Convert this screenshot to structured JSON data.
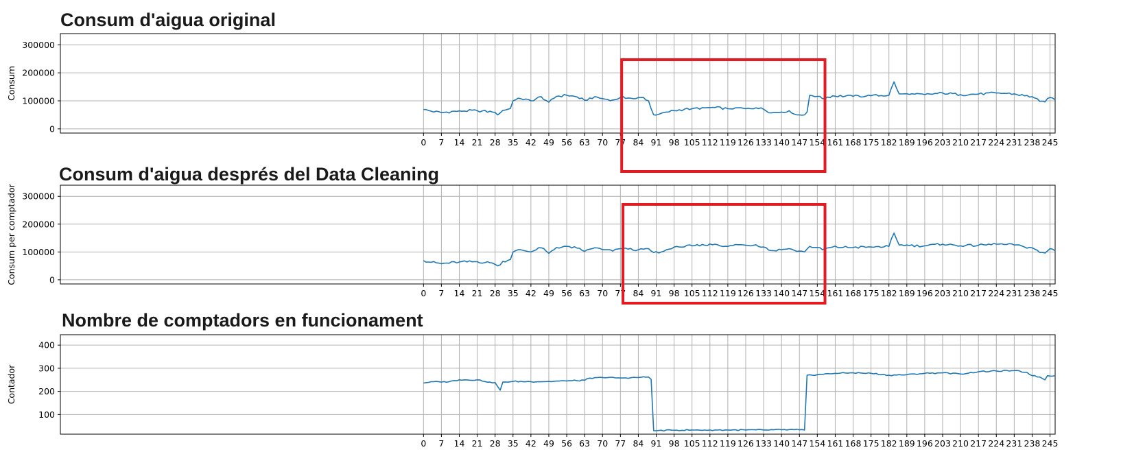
{
  "colors": {
    "line": "#1f77b4",
    "grid": "#b0b0b0",
    "highlight": "#e31b23",
    "axis": "#000000"
  },
  "chart_data": [
    {
      "type": "line",
      "title": "Consum d'aigua original",
      "ylabel": "Consum",
      "xlim": [
        -142,
        247
      ],
      "ylim": [
        -15000,
        340000
      ],
      "yticks": [
        0,
        100000,
        200000,
        300000
      ],
      "xticks": [
        0,
        7,
        14,
        21,
        28,
        35,
        42,
        49,
        56,
        63,
        70,
        77,
        84,
        91,
        98,
        105,
        112,
        119,
        126,
        133,
        140,
        147,
        154,
        161,
        168,
        175,
        182,
        189,
        196,
        203,
        210,
        217,
        224,
        231,
        238,
        245
      ],
      "grid": true,
      "highlight_box": {
        "x_range": [
          77.5,
          157
        ],
        "note": ""
      },
      "anchors": [
        [
          0,
          69000
        ],
        [
          3,
          63000
        ],
        [
          7,
          58000
        ],
        [
          14,
          64000
        ],
        [
          21,
          65000
        ],
        [
          27,
          60000
        ],
        [
          29,
          50000
        ],
        [
          31,
          66000
        ],
        [
          34,
          73000
        ],
        [
          35,
          100000
        ],
        [
          38,
          108000
        ],
        [
          42,
          100000
        ],
        [
          46,
          115000
        ],
        [
          49,
          95000
        ],
        [
          52,
          116000
        ],
        [
          56,
          120000
        ],
        [
          60,
          114000
        ],
        [
          63,
          102000
        ],
        [
          67,
          115000
        ],
        [
          70,
          108000
        ],
        [
          74,
          103000
        ],
        [
          77,
          112000
        ],
        [
          80,
          110000
        ],
        [
          83,
          108000
        ],
        [
          86,
          112000
        ],
        [
          88,
          100000
        ],
        [
          89,
          72000
        ],
        [
          90,
          50000
        ],
        [
          92,
          52000
        ],
        [
          95,
          60000
        ],
        [
          98,
          65000
        ],
        [
          102,
          70000
        ],
        [
          105,
          72000
        ],
        [
          110,
          75000
        ],
        [
          114,
          76000
        ],
        [
          119,
          72000
        ],
        [
          122,
          75000
        ],
        [
          126,
          72000
        ],
        [
          130,
          75000
        ],
        [
          133,
          70000
        ],
        [
          136,
          57000
        ],
        [
          140,
          60000
        ],
        [
          143,
          65000
        ],
        [
          146,
          50000
        ],
        [
          149,
          50000
        ],
        [
          150,
          60000
        ],
        [
          151,
          120000
        ],
        [
          154,
          116000
        ],
        [
          156,
          108000
        ],
        [
          160,
          118000
        ],
        [
          168,
          116000
        ],
        [
          175,
          118000
        ],
        [
          182,
          120000
        ],
        [
          184,
          168000
        ],
        [
          186,
          125000
        ],
        [
          190,
          123000
        ],
        [
          196,
          122000
        ],
        [
          203,
          128000
        ],
        [
          210,
          122000
        ],
        [
          217,
          124000
        ],
        [
          224,
          128000
        ],
        [
          231,
          125000
        ],
        [
          235,
          118000
        ],
        [
          238,
          115000
        ],
        [
          241,
          98000
        ],
        [
          243,
          96000
        ],
        [
          245,
          112000
        ],
        [
          246,
          110000
        ],
        [
          247,
          104000
        ]
      ]
    },
    {
      "type": "line",
      "title": "Consum d'aigua després del Data Cleaning",
      "ylabel": "Consum per comptador",
      "xlim": [
        -142,
        247
      ],
      "ylim": [
        -15000,
        340000
      ],
      "yticks": [
        0,
        100000,
        200000,
        300000
      ],
      "xticks": [
        0,
        7,
        14,
        21,
        28,
        35,
        42,
        49,
        56,
        63,
        70,
        77,
        84,
        91,
        98,
        105,
        112,
        119,
        126,
        133,
        140,
        147,
        154,
        161,
        168,
        175,
        182,
        189,
        196,
        203,
        210,
        217,
        224,
        231,
        238,
        245
      ],
      "grid": true,
      "highlight_box": {
        "x_range": [
          78,
          157
        ],
        "note": ""
      },
      "anchors": [
        [
          0,
          69000
        ],
        [
          3,
          63000
        ],
        [
          7,
          58000
        ],
        [
          14,
          64000
        ],
        [
          21,
          65000
        ],
        [
          27,
          60000
        ],
        [
          29,
          50000
        ],
        [
          31,
          66000
        ],
        [
          34,
          73000
        ],
        [
          35,
          100000
        ],
        [
          38,
          108000
        ],
        [
          42,
          100000
        ],
        [
          46,
          115000
        ],
        [
          49,
          95000
        ],
        [
          52,
          116000
        ],
        [
          56,
          120000
        ],
        [
          60,
          114000
        ],
        [
          63,
          102000
        ],
        [
          67,
          115000
        ],
        [
          70,
          108000
        ],
        [
          74,
          103000
        ],
        [
          77,
          112000
        ],
        [
          80,
          110000
        ],
        [
          84,
          108000
        ],
        [
          88,
          112000
        ],
        [
          90,
          98000
        ],
        [
          93,
          100000
        ],
        [
          96,
          110000
        ],
        [
          100,
          118000
        ],
        [
          105,
          122000
        ],
        [
          110,
          124000
        ],
        [
          114,
          128000
        ],
        [
          119,
          120000
        ],
        [
          123,
          126000
        ],
        [
          126,
          124000
        ],
        [
          130,
          126000
        ],
        [
          133,
          118000
        ],
        [
          136,
          105000
        ],
        [
          140,
          108000
        ],
        [
          143,
          112000
        ],
        [
          146,
          102000
        ],
        [
          149,
          100000
        ],
        [
          151,
          120000
        ],
        [
          154,
          116000
        ],
        [
          156,
          108000
        ],
        [
          160,
          118000
        ],
        [
          168,
          116000
        ],
        [
          175,
          118000
        ],
        [
          182,
          120000
        ],
        [
          184,
          168000
        ],
        [
          186,
          125000
        ],
        [
          190,
          123000
        ],
        [
          196,
          122000
        ],
        [
          203,
          128000
        ],
        [
          210,
          122000
        ],
        [
          217,
          124000
        ],
        [
          224,
          128000
        ],
        [
          231,
          125000
        ],
        [
          235,
          118000
        ],
        [
          238,
          115000
        ],
        [
          241,
          98000
        ],
        [
          243,
          96000
        ],
        [
          245,
          112000
        ],
        [
          246,
          110000
        ],
        [
          247,
          104000
        ]
      ]
    },
    {
      "type": "line",
      "title": "Nombre de comptadors en funcionament",
      "ylabel": "Contador",
      "xlim": [
        -142,
        247
      ],
      "ylim": [
        15,
        445
      ],
      "yticks": [
        100,
        200,
        300,
        400
      ],
      "xticks": [
        0,
        7,
        14,
        21,
        28,
        35,
        42,
        49,
        56,
        63,
        70,
        77,
        84,
        91,
        98,
        105,
        112,
        119,
        126,
        133,
        140,
        147,
        154,
        161,
        168,
        175,
        182,
        189,
        196,
        203,
        210,
        217,
        224,
        231,
        238,
        245
      ],
      "grid": true,
      "anchors": [
        [
          0,
          236
        ],
        [
          3,
          242
        ],
        [
          7,
          240
        ],
        [
          10,
          242
        ],
        [
          14,
          250
        ],
        [
          21,
          250
        ],
        [
          26,
          240
        ],
        [
          28,
          238
        ],
        [
          30,
          205
        ],
        [
          31,
          240
        ],
        [
          35,
          243
        ],
        [
          42,
          242
        ],
        [
          49,
          243
        ],
        [
          56,
          245
        ],
        [
          63,
          248
        ],
        [
          64,
          255
        ],
        [
          70,
          260
        ],
        [
          77,
          258
        ],
        [
          84,
          260
        ],
        [
          88,
          262
        ],
        [
          89,
          252
        ],
        [
          90,
          30
        ],
        [
          98,
          32
        ],
        [
          105,
          33
        ],
        [
          112,
          33
        ],
        [
          119,
          33
        ],
        [
          126,
          33
        ],
        [
          133,
          33
        ],
        [
          140,
          34
        ],
        [
          147,
          34
        ],
        [
          149,
          33
        ],
        [
          150,
          270
        ],
        [
          154,
          272
        ],
        [
          161,
          278
        ],
        [
          168,
          280
        ],
        [
          175,
          278
        ],
        [
          182,
          270
        ],
        [
          189,
          272
        ],
        [
          196,
          278
        ],
        [
          203,
          280
        ],
        [
          210,
          275
        ],
        [
          217,
          285
        ],
        [
          224,
          288
        ],
        [
          231,
          290
        ],
        [
          236,
          282
        ],
        [
          238,
          268
        ],
        [
          241,
          262
        ],
        [
          243,
          250
        ],
        [
          244,
          268
        ],
        [
          247,
          268
        ]
      ]
    }
  ]
}
